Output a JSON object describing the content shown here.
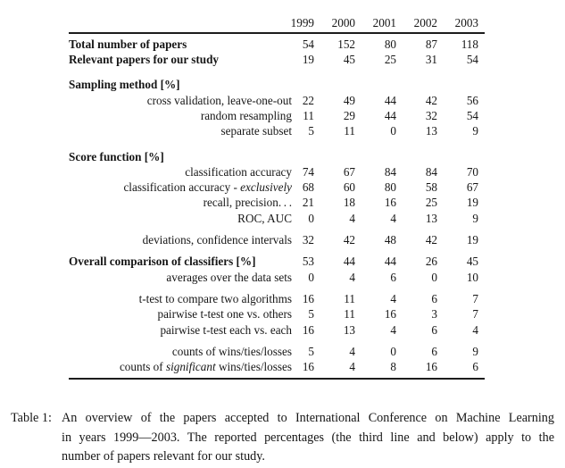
{
  "colors": {
    "background": "#ffffff",
    "text": "#161616",
    "rule": "#1c1c1c"
  },
  "table": {
    "years": [
      "1999",
      "2000",
      "2001",
      "2002",
      "2003"
    ],
    "rows": [
      {
        "type": "bold",
        "label": "Total number of papers",
        "values": [
          "54",
          "152",
          "80",
          "87",
          "118"
        ]
      },
      {
        "type": "bold",
        "label": "Relevant papers for our study",
        "values": [
          "19",
          "45",
          "25",
          "31",
          "54"
        ]
      },
      {
        "type": "section",
        "label": "Sampling method [%]"
      },
      {
        "type": "sub",
        "label": "cross validation, leave-one-out",
        "values": [
          "22",
          "49",
          "44",
          "42",
          "56"
        ]
      },
      {
        "type": "sub",
        "label": "random resampling",
        "values": [
          "11",
          "29",
          "44",
          "32",
          "54"
        ]
      },
      {
        "type": "sub",
        "label": "separate subset",
        "values": [
          "5",
          "11",
          "0",
          "13",
          "9"
        ]
      },
      {
        "type": "section",
        "label": "Score function [%]"
      },
      {
        "type": "sub",
        "label": "classification accuracy",
        "values": [
          "74",
          "67",
          "84",
          "84",
          "70"
        ]
      },
      {
        "type": "sub",
        "label_pre": "classification accuracy - ",
        "label_italic": "exclusively",
        "values": [
          "68",
          "60",
          "80",
          "58",
          "67"
        ]
      },
      {
        "type": "sub",
        "label": "recall, precision. . .",
        "values": [
          "21",
          "18",
          "16",
          "25",
          "19"
        ]
      },
      {
        "type": "sub",
        "label": "ROC, AUC",
        "values": [
          "0",
          "4",
          "4",
          "13",
          "9"
        ]
      },
      {
        "type": "sub",
        "label": "deviations, confidence intervals",
        "values": [
          "32",
          "42",
          "48",
          "42",
          "19"
        ]
      },
      {
        "type": "bold",
        "label": "Overall comparison of classifiers [%]",
        "values": [
          "53",
          "44",
          "44",
          "26",
          "45"
        ]
      },
      {
        "type": "sub",
        "label": "averages over the data sets",
        "values": [
          "0",
          "4",
          "6",
          "0",
          "10"
        ]
      },
      {
        "type": "sub",
        "label": "t-test to compare two algorithms",
        "values": [
          "16",
          "11",
          "4",
          "6",
          "7"
        ]
      },
      {
        "type": "sub",
        "label": "pairwise t-test one vs. others",
        "values": [
          "5",
          "11",
          "16",
          "3",
          "7"
        ]
      },
      {
        "type": "sub",
        "label": "pairwise t-test each vs. each",
        "values": [
          "16",
          "13",
          "4",
          "6",
          "4"
        ]
      },
      {
        "type": "sub",
        "label": "counts of wins/ties/losses",
        "values": [
          "5",
          "4",
          "0",
          "6",
          "9"
        ]
      },
      {
        "type": "sub",
        "label_pre": "counts of ",
        "label_italic": "significant",
        "label_post": " wins/ties/losses",
        "values": [
          "16",
          "4",
          "8",
          "16",
          "6"
        ]
      }
    ]
  },
  "caption": {
    "label": "Table 1:",
    "lines": [
      "An overview of the papers accepted to International Conference on Machine Learning",
      "in years 1999—2003.  The reported percentages (the third line and below) apply to the",
      "number of papers relevant for our study."
    ]
  }
}
